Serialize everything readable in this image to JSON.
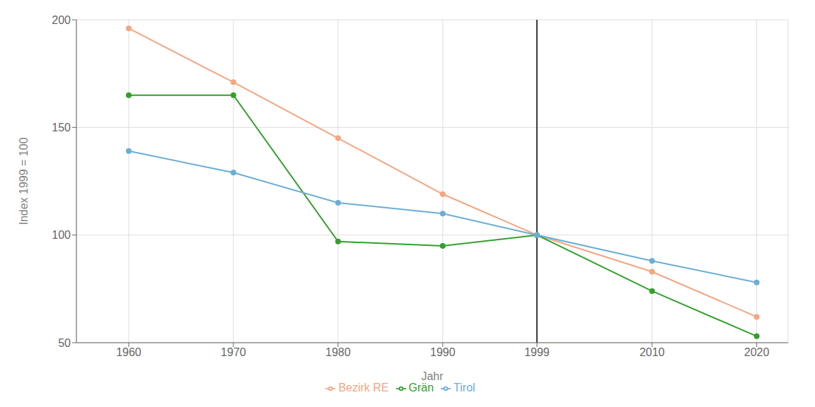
{
  "chart_data": {
    "type": "line",
    "xlabel": "Jahr",
    "ylabel": "Index 1999 = 100",
    "x": [
      1960,
      1970,
      1980,
      1990,
      1999,
      2010,
      2020
    ],
    "series": [
      {
        "name": "Bezirk RE",
        "color": "#F4A582",
        "values": [
          196,
          171,
          145,
          119,
          100,
          83,
          62
        ]
      },
      {
        "name": "Grän",
        "color": "#33A02C",
        "values": [
          165,
          165,
          97,
          95,
          100,
          74,
          53
        ]
      },
      {
        "name": "Tirol",
        "color": "#6BAED6",
        "values": [
          139,
          129,
          115,
          110,
          100,
          88,
          78
        ]
      }
    ],
    "xlim": [
      1955,
      2023
    ],
    "ylim": [
      50,
      200
    ],
    "xticks": [
      1960,
      1970,
      1980,
      1990,
      1999,
      2010,
      2020
    ],
    "yticks": [
      50,
      100,
      150,
      200
    ],
    "vlines": [
      1999
    ],
    "grid": true,
    "legend": "bottom",
    "marker": "circle"
  }
}
